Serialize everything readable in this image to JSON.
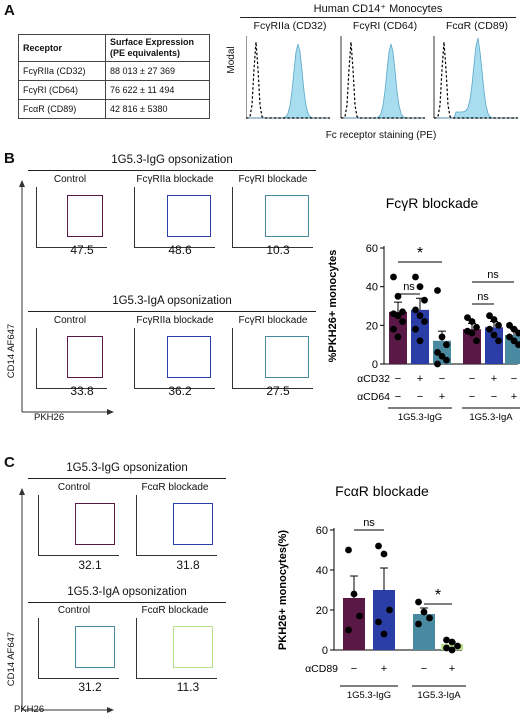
{
  "panel_a": {
    "label": "A",
    "table": {
      "headers": [
        "Receptor",
        "Surface Expression\n(PE equivalents)"
      ],
      "rows": [
        {
          "receptor": "FcγRIIa (CD32)",
          "value": "88 013 ± 27 369"
        },
        {
          "receptor": "FcγRI (CD64)",
          "value": "76 622 ± 11 494"
        },
        {
          "receptor": "FcαR (CD89)",
          "value": "42 816 ± 5380"
        }
      ]
    },
    "hist_header": "Human CD14⁺ Monocytes",
    "hist_titles": [
      "FcγRIIa (CD32)",
      "FcγRI (CD64)",
      "FcαR (CD89)"
    ],
    "y_label": "Modal",
    "x_label": "Fc receptor staining (PE)"
  },
  "panel_b": {
    "label": "B",
    "igg_header": "1G5.3-IgG opsonization",
    "iga_header": "1G5.3-IgA opsonization",
    "plot_titles": [
      "Control",
      "FcγRIIa blockade",
      "FcγRI blockade"
    ],
    "igg_values": [
      "47.5",
      "48.6",
      "10.3"
    ],
    "iga_values": [
      "33.8",
      "36.2",
      "27.5"
    ],
    "y_axis": "CD14 AF647",
    "x_axis": "PKH26"
  },
  "panel_c": {
    "label": "C",
    "igg_header": "1G5.3-IgG opsonization",
    "iga_header": "1G5.3-IgA opsonization",
    "plot_titles": [
      "Control",
      "FcαR blockade"
    ],
    "igg_values": [
      "32.1",
      "31.8"
    ],
    "iga_values": [
      "31.2",
      "11.3"
    ],
    "y_axis": "CD14 AF647",
    "x_axis": "PKH26"
  },
  "chart_data": [
    {
      "type": "bar",
      "title": "FcγR blockade",
      "ylabel": "%PKH26+ monocytes",
      "ylim": [
        0,
        60
      ],
      "yticks": [
        "0",
        "20",
        "40",
        "60"
      ],
      "groups": [
        "1G5.3-IgG",
        "1G5.3-IgA"
      ],
      "row_labels": [
        "αCD32",
        "αCD64"
      ],
      "bars": [
        {
          "group": "1G5.3-IgG",
          "cd32": "−",
          "cd64": "−",
          "value": 27,
          "err": 5,
          "color": "#5a1846",
          "points": [
            45,
            35,
            27,
            26,
            25,
            22,
            18,
            14
          ]
        },
        {
          "group": "1G5.3-IgG",
          "cd32": "+",
          "cd64": "−",
          "value": 28,
          "err": 6,
          "color": "#2b3ea8",
          "points": [
            45,
            40,
            33,
            28,
            25,
            22,
            18,
            12
          ]
        },
        {
          "group": "1G5.3-IgG",
          "cd32": "−",
          "cd64": "+",
          "value": 12,
          "err": 5,
          "color": "#4a8aa0",
          "points": [
            38,
            14,
            10,
            6,
            4,
            2,
            0
          ]
        },
        {
          "group": "1G5.3-IgA",
          "cd32": "−",
          "cd64": "−",
          "value": 18,
          "err": 3,
          "color": "#5a1846",
          "points": [
            24,
            22,
            19,
            17,
            16,
            12
          ]
        },
        {
          "group": "1G5.3-IgA",
          "cd32": "+",
          "cd64": "−",
          "value": 19,
          "err": 3,
          "color": "#2b3ea8",
          "points": [
            25,
            23,
            20,
            18,
            15,
            12
          ]
        },
        {
          "group": "1G5.3-IgA",
          "cd32": "−",
          "cd64": "+",
          "value": 15,
          "err": 3,
          "color": "#4a8aa0",
          "points": [
            20,
            18,
            16,
            14,
            12,
            10
          ]
        }
      ],
      "annotations": [
        "ns",
        "*",
        "ns",
        "ns"
      ]
    },
    {
      "type": "bar",
      "title": "FcαR blockade",
      "ylabel": "PKH26+ monocytes(%)",
      "ylim": [
        0,
        60
      ],
      "yticks": [
        "0",
        "20",
        "40",
        "60"
      ],
      "groups": [
        "1G5.3-IgG",
        "1G5.3-IgA"
      ],
      "row_labels": [
        "αCD89"
      ],
      "bars": [
        {
          "group": "1G5.3-IgG",
          "cd89": "−",
          "value": 26,
          "err": 11,
          "color": "#5a1846",
          "points": [
            50,
            28,
            17,
            10
          ]
        },
        {
          "group": "1G5.3-IgG",
          "cd89": "+",
          "value": 30,
          "err": 11,
          "color": "#2b3ea8",
          "points": [
            52,
            48,
            20,
            14,
            8
          ]
        },
        {
          "group": "1G5.3-IgA",
          "cd89": "−",
          "value": 18,
          "err": 3,
          "color": "#4a8aa0",
          "points": [
            24,
            19,
            16,
            13
          ]
        },
        {
          "group": "1G5.3-IgA",
          "cd89": "+",
          "value": 3,
          "err": 1,
          "color": "#b8e08a",
          "points": [
            5,
            4,
            2,
            1,
            0
          ]
        }
      ],
      "annotations": [
        "ns",
        "*"
      ]
    }
  ],
  "colors": {
    "control": "#5a1846",
    "cd32": "#2b3ea8",
    "cd64": "#4a8aa0",
    "cd89": "#b8e08a",
    "hist_fill": "#a8dcef"
  }
}
